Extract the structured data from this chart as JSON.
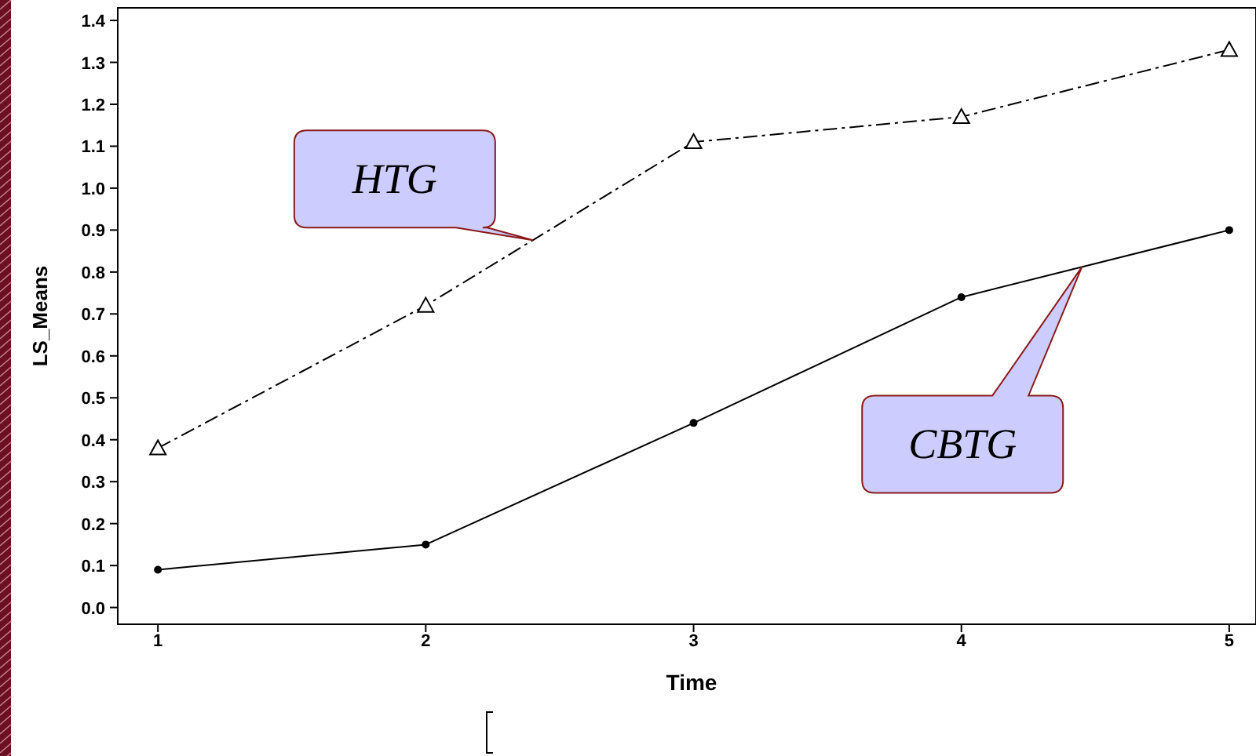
{
  "chart_data": {
    "type": "line",
    "xlabel": "Time",
    "ylabel": "LS_Means",
    "x": [
      1,
      2,
      3,
      4,
      5
    ],
    "series": [
      {
        "name": "HTG",
        "color": "#000000",
        "values": [
          0.38,
          0.72,
          1.11,
          1.17,
          1.33
        ],
        "marker": "triangle",
        "line_style": "dashed"
      },
      {
        "name": "CBTG",
        "color": "#000000",
        "values": [
          0.09,
          0.15,
          0.44,
          0.74,
          0.9
        ],
        "marker": "circle",
        "line_style": "solid"
      }
    ],
    "xlim": [
      0.85,
      5.1
    ],
    "ylim": [
      -0.04,
      1.43
    ],
    "xticks": [
      1,
      2,
      3,
      4,
      5
    ],
    "yticks": [
      {
        "value": 0,
        "label": "0.0"
      },
      0.1,
      0.2,
      0.3,
      0.4,
      0.5,
      0.6,
      0.7,
      0.8,
      0.9,
      {
        "value": 1,
        "label": "1.0"
      },
      1.1,
      1.2,
      1.3,
      1.4
    ],
    "grid": false
  }
}
